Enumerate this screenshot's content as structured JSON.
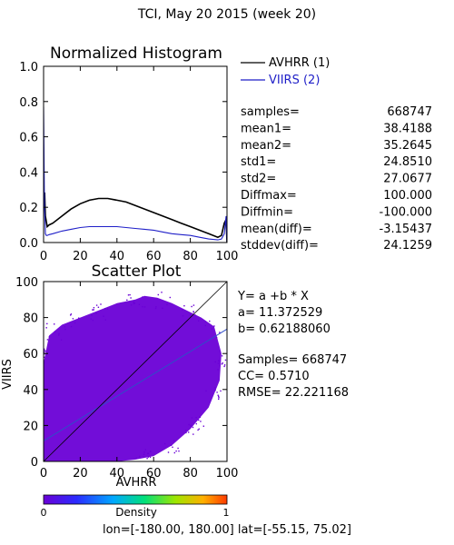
{
  "page_title": "TCI,  May 20 2015 (week 20)",
  "colors": {
    "avhrr": "#000000",
    "viirs": "#1f1fc8",
    "scatter": "#6a00d6",
    "fit": "#2f4ec8"
  },
  "chart_data": [
    {
      "type": "line",
      "title": "Normalized Histogram",
      "xlim": [
        0,
        100
      ],
      "ylim": [
        0,
        1
      ],
      "xticks": [
        0,
        20,
        40,
        60,
        80,
        100
      ],
      "yticks": [
        "0.0",
        "0.2",
        "0.4",
        "0.6",
        "0.8",
        "1.0"
      ],
      "legend_position": "top-right-outside",
      "series": [
        {
          "name": "AVHRR (1)",
          "x": [
            0,
            0.6,
            1,
            1.5,
            2,
            3,
            5,
            10,
            15,
            20,
            25,
            30,
            35,
            40,
            45,
            50,
            55,
            60,
            65,
            70,
            75,
            80,
            85,
            90,
            95,
            97,
            98.5,
            99.5,
            100
          ],
          "y": [
            0.28,
            0.28,
            0.15,
            0.12,
            0.09,
            0.1,
            0.11,
            0.15,
            0.19,
            0.22,
            0.24,
            0.25,
            0.25,
            0.24,
            0.23,
            0.21,
            0.19,
            0.17,
            0.15,
            0.13,
            0.11,
            0.09,
            0.07,
            0.05,
            0.03,
            0.04,
            0.11,
            0.13,
            0.0
          ]
        },
        {
          "name": "VIIRS (2)",
          "x": [
            0,
            0.5,
            1,
            1.5,
            2,
            3,
            5,
            10,
            15,
            20,
            25,
            30,
            35,
            40,
            45,
            50,
            55,
            60,
            65,
            70,
            75,
            80,
            85,
            90,
            95,
            97,
            98.5,
            99.5,
            100
          ],
          "y": [
            0.77,
            0.2,
            0.05,
            0.04,
            0.04,
            0.045,
            0.05,
            0.065,
            0.075,
            0.085,
            0.09,
            0.09,
            0.09,
            0.09,
            0.085,
            0.08,
            0.075,
            0.07,
            0.06,
            0.05,
            0.045,
            0.04,
            0.03,
            0.02,
            0.015,
            0.02,
            0.05,
            0.15,
            0.0
          ]
        }
      ]
    },
    {
      "type": "scatter",
      "title": "Scatter Plot",
      "xlabel": "AVHRR",
      "ylabel": "VIIRS",
      "xlim": [
        0,
        100
      ],
      "ylim": [
        0,
        100
      ],
      "xticks": [
        0,
        20,
        40,
        60,
        80,
        100
      ],
      "yticks": [
        0,
        20,
        40,
        60,
        80,
        100
      ],
      "fit": {
        "a": 11.372529,
        "b": 0.6218806
      },
      "colorbar": {
        "label": "Density",
        "min": "0",
        "max": "1"
      }
    }
  ],
  "stats": [
    {
      "label": "samples=",
      "value": "668747"
    },
    {
      "label": "mean1=",
      "value": "38.4188"
    },
    {
      "label": "mean2=",
      "value": "35.2645"
    },
    {
      "label": "std1=",
      "value": "24.8510"
    },
    {
      "label": "std2=",
      "value": "27.0677"
    },
    {
      "label": "Diffmax=",
      "value": "100.000"
    },
    {
      "label": "Diffmin=",
      "value": "-100.000"
    },
    {
      "label": "mean(diff)=",
      "value": "-3.15437"
    },
    {
      "label": "stddev(diff)=",
      "value": "24.1259"
    }
  ],
  "regression": {
    "equation": "Y= a +b * X",
    "a_line": "a= 11.372529",
    "b_line": "b= 0.62188060",
    "samples_line": "Samples= 668747",
    "cc_line": "CC=  0.5710",
    "rmse_line": "RMSE= 22.221168"
  },
  "footer": "lon=[-180.00, 180.00] lat=[-55.15, 75.02]"
}
